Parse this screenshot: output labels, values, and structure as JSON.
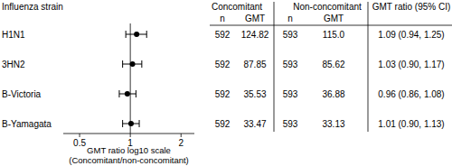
{
  "chart_data": {
    "type": "forest",
    "row_header": "Influenza strain",
    "categories": [
      "H1N1",
      "3HN2",
      "B-Victoria",
      "B-Yamagata"
    ],
    "values": [
      1.09,
      1.03,
      0.96,
      1.01
    ],
    "ci_lower": [
      0.94,
      0.9,
      0.86,
      0.9
    ],
    "ci_upper": [
      1.25,
      1.17,
      1.08,
      1.13
    ],
    "reference": 1,
    "log": "x",
    "xlim": [
      0.4,
      2.4
    ],
    "xticks": [
      0.5,
      1,
      2
    ],
    "xlabel": [
      "GMT ratio log10 scale",
      "(Concomitant/non-concomitant)"
    ],
    "color": "#000000",
    "marker": "circle",
    "table": {
      "group_headers": [
        "Concomitant",
        "Non-concomitant",
        "GMT ratio (95% CI)"
      ],
      "sub_headers": [
        "n",
        "GMT",
        "n",
        "GMT"
      ],
      "rows": [
        [
          "592",
          "124.82",
          "593",
          "115.0",
          "1.09 (0.94, 1.25)"
        ],
        [
          "592",
          "87.85",
          "593",
          "85.62",
          "1.03 (0.90, 1.17)"
        ],
        [
          "592",
          "35.53",
          "593",
          "36.88",
          "0.96 (0.86, 1.08)"
        ],
        [
          "592",
          "33.47",
          "593",
          "33.13",
          "1.01 (0.90, 1.13)"
        ]
      ]
    }
  }
}
